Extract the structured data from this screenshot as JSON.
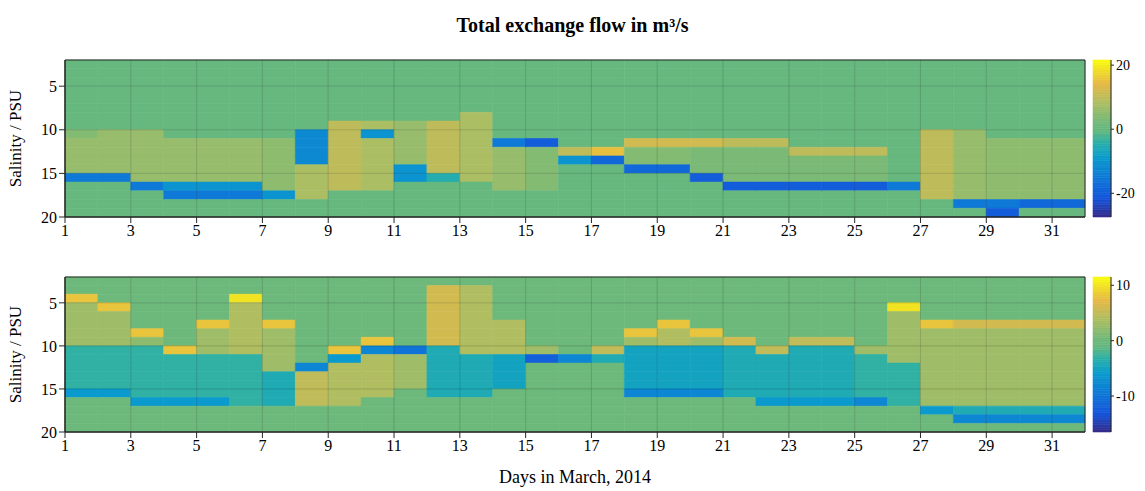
{
  "title": "Total exchange flow in m³/s",
  "chart_data": [
    {
      "type": "heatmap",
      "y_label": "Salinity / PSU",
      "xlim": [
        1,
        32
      ],
      "xticks": [
        1,
        3,
        5,
        7,
        9,
        11,
        13,
        15,
        17,
        19,
        21,
        23,
        25,
        27,
        29,
        31
      ],
      "ylim": [
        2,
        20
      ],
      "yticks": [
        5,
        10,
        15,
        20
      ],
      "grid": true,
      "x_edges": [
        1,
        2,
        3,
        4,
        5,
        6,
        7,
        8,
        9,
        10,
        11,
        12,
        13,
        14,
        15,
        16,
        17,
        18,
        19,
        20,
        21,
        22,
        23,
        24,
        25,
        26,
        27,
        28,
        29,
        30,
        31,
        32
      ],
      "y_edges": [
        2,
        3,
        4,
        5,
        6,
        7,
        8,
        9,
        10,
        11,
        12,
        13,
        14,
        15,
        16,
        17,
        18,
        19,
        20
      ],
      "values": [
        [
          0,
          0,
          0,
          0,
          0,
          0,
          0,
          0,
          4,
          6,
          6,
          6,
          6,
          -15,
          0,
          0,
          0,
          0
        ],
        [
          0,
          0,
          0,
          0,
          0,
          0,
          0,
          0,
          6,
          6,
          6,
          6,
          6,
          -15,
          0,
          0,
          0,
          0
        ],
        [
          0,
          0,
          0,
          0,
          0,
          0,
          0,
          0,
          6,
          6,
          6,
          6,
          6,
          6,
          -15,
          0,
          0,
          0
        ],
        [
          0,
          0,
          0,
          0,
          0,
          0,
          0,
          0,
          0,
          6,
          6,
          6,
          6,
          6,
          -10,
          -15,
          0,
          0
        ],
        [
          0,
          0,
          0,
          0,
          0,
          0,
          0,
          0,
          0,
          6,
          6,
          6,
          6,
          6,
          -10,
          -15,
          0,
          0
        ],
        [
          0,
          0,
          0,
          0,
          0,
          0,
          0,
          0,
          0,
          6,
          6,
          6,
          6,
          6,
          -10,
          -15,
          0,
          0
        ],
        [
          0,
          0,
          0,
          0,
          0,
          0,
          0,
          0,
          0,
          5,
          5,
          5,
          5,
          5,
          5,
          -10,
          0,
          0
        ],
        [
          0,
          0,
          0,
          0,
          0,
          0,
          0,
          0,
          -12,
          -12,
          -12,
          -12,
          8,
          8,
          8,
          8,
          0,
          0
        ],
        [
          0,
          0,
          0,
          0,
          0,
          0,
          0,
          10,
          10,
          10,
          10,
          10,
          10,
          10,
          10,
          0,
          0,
          0
        ],
        [
          0,
          0,
          0,
          0,
          0,
          0,
          0,
          8,
          -10,
          8,
          8,
          8,
          8,
          8,
          8,
          0,
          0,
          0
        ],
        [
          0,
          0,
          0,
          0,
          0,
          0,
          0,
          6,
          6,
          6,
          6,
          6,
          -10,
          -10,
          0,
          0,
          0,
          0
        ],
        [
          0,
          0,
          0,
          0,
          0,
          0,
          0,
          10,
          10,
          10,
          10,
          10,
          10,
          -5,
          0,
          0,
          0,
          0
        ],
        [
          0,
          0,
          0,
          0,
          0,
          0,
          8,
          8,
          8,
          8,
          8,
          8,
          8,
          8,
          0,
          0,
          0,
          0
        ],
        [
          0,
          0,
          0,
          0,
          0,
          0,
          0,
          0,
          0,
          -15,
          6,
          6,
          6,
          6,
          6,
          0,
          0,
          0
        ],
        [
          0,
          0,
          0,
          0,
          0,
          0,
          0,
          0,
          0,
          -20,
          4,
          4,
          4,
          4,
          4,
          0,
          0,
          0
        ],
        [
          0,
          0,
          0,
          0,
          0,
          0,
          0,
          0,
          0,
          0,
          10,
          -10,
          0,
          0,
          0,
          0,
          0,
          0
        ],
        [
          0,
          0,
          0,
          0,
          0,
          0,
          0,
          0,
          0,
          0,
          15,
          -18,
          0,
          0,
          0,
          0,
          0,
          0
        ],
        [
          0,
          0,
          0,
          0,
          0,
          0,
          0,
          0,
          0,
          12,
          4,
          4,
          -18,
          0,
          0,
          0,
          0,
          0
        ],
        [
          0,
          0,
          0,
          0,
          0,
          0,
          0,
          0,
          0,
          12,
          4,
          4,
          -18,
          0,
          0,
          0,
          0,
          0
        ],
        [
          0,
          0,
          0,
          0,
          0,
          0,
          0,
          0,
          0,
          12,
          3,
          3,
          3,
          -20,
          0,
          0,
          0,
          0
        ],
        [
          0,
          0,
          0,
          0,
          0,
          0,
          0,
          0,
          0,
          10,
          3,
          3,
          3,
          3,
          -20,
          0,
          0,
          0
        ],
        [
          0,
          0,
          0,
          0,
          0,
          0,
          0,
          0,
          0,
          10,
          3,
          3,
          3,
          3,
          -20,
          0,
          0,
          0
        ],
        [
          0,
          0,
          0,
          0,
          0,
          0,
          0,
          0,
          0,
          0,
          10,
          3,
          3,
          3,
          -20,
          0,
          0,
          0
        ],
        [
          0,
          0,
          0,
          0,
          0,
          0,
          0,
          0,
          0,
          0,
          10,
          3,
          3,
          3,
          -20,
          0,
          0,
          0
        ],
        [
          0,
          0,
          0,
          0,
          0,
          0,
          0,
          0,
          0,
          0,
          10,
          3,
          3,
          3,
          -20,
          0,
          0,
          0
        ],
        [
          0,
          0,
          0,
          0,
          0,
          0,
          0,
          0,
          0,
          0,
          0,
          0,
          0,
          0,
          -15,
          0,
          0,
          0
        ],
        [
          0,
          0,
          0,
          0,
          0,
          0,
          0,
          0,
          10,
          10,
          10,
          10,
          10,
          10,
          10,
          10,
          0,
          0
        ],
        [
          0,
          0,
          0,
          0,
          0,
          0,
          0,
          0,
          6,
          6,
          6,
          6,
          6,
          6,
          6,
          6,
          -15,
          0
        ],
        [
          0,
          0,
          0,
          0,
          0,
          0,
          0,
          0,
          0,
          5,
          5,
          5,
          5,
          5,
          5,
          5,
          -15,
          -20
        ],
        [
          0,
          0,
          0,
          0,
          0,
          0,
          0,
          0,
          0,
          5,
          5,
          5,
          5,
          5,
          5,
          5,
          -18,
          0
        ],
        [
          0,
          0,
          0,
          0,
          0,
          0,
          0,
          0,
          0,
          5,
          5,
          5,
          5,
          5,
          5,
          5,
          -18,
          0
        ]
      ],
      "colorbar": {
        "range": [
          -27.4,
          21.6
        ],
        "ticks": [
          -20,
          0,
          20
        ]
      }
    },
    {
      "type": "heatmap",
      "y_label": "Salinity / PSU",
      "x_label": "Days in March, 2014",
      "xlim": [
        1,
        32
      ],
      "xticks": [
        1,
        3,
        5,
        7,
        9,
        11,
        13,
        15,
        17,
        19,
        21,
        23,
        25,
        27,
        29,
        31
      ],
      "ylim": [
        2,
        20
      ],
      "yticks": [
        5,
        10,
        15,
        20
      ],
      "grid": true,
      "x_edges": [
        1,
        2,
        3,
        4,
        5,
        6,
        7,
        8,
        9,
        10,
        11,
        12,
        13,
        14,
        15,
        16,
        17,
        18,
        19,
        20,
        21,
        22,
        23,
        24,
        25,
        26,
        27,
        28,
        29,
        30,
        31,
        32
      ],
      "y_edges": [
        2,
        3,
        4,
        5,
        6,
        7,
        8,
        9,
        10,
        11,
        12,
        13,
        14,
        15,
        16,
        17,
        18,
        19,
        20
      ],
      "values": [
        [
          0,
          0,
          8,
          3,
          3,
          3,
          3,
          3,
          -3,
          -3,
          -3,
          -3,
          -3,
          -6,
          0,
          0,
          0,
          0
        ],
        [
          0,
          0,
          0,
          8,
          3,
          3,
          3,
          3,
          -3,
          -3,
          -3,
          -3,
          -3,
          -6,
          0,
          0,
          0,
          0
        ],
        [
          0,
          0,
          0,
          0,
          0,
          0,
          8,
          2,
          -3,
          -3,
          -3,
          -3,
          -3,
          -3,
          -6,
          0,
          0,
          0
        ],
        [
          0,
          0,
          0,
          0,
          0,
          0,
          0,
          0,
          8,
          -3,
          -3,
          -3,
          -3,
          -3,
          -6,
          0,
          0,
          0
        ],
        [
          0,
          0,
          0,
          0,
          0,
          8,
          3,
          3,
          3,
          -3,
          -3,
          -3,
          -3,
          -3,
          -6,
          0,
          0,
          0
        ],
        [
          0,
          0,
          10,
          4,
          4,
          4,
          4,
          4,
          4,
          -3,
          -3,
          -3,
          -3,
          -3,
          -3,
          0,
          0,
          0
        ],
        [
          0,
          0,
          0,
          0,
          0,
          8,
          3,
          3,
          3,
          3,
          3,
          -4,
          -4,
          -4,
          -4,
          0,
          0,
          0
        ],
        [
          0,
          0,
          0,
          0,
          0,
          0,
          0,
          0,
          0,
          0,
          -8,
          5,
          5,
          5,
          5,
          0,
          0,
          0
        ],
        [
          0,
          0,
          0,
          0,
          0,
          0,
          0,
          0,
          8,
          -6,
          4,
          4,
          4,
          4,
          4,
          0,
          0,
          0
        ],
        [
          0,
          0,
          0,
          0,
          0,
          0,
          0,
          8,
          -8,
          4,
          4,
          4,
          4,
          4,
          0,
          0,
          0,
          0
        ],
        [
          0,
          0,
          0,
          0,
          0,
          0,
          0,
          0,
          -10,
          3,
          3,
          3,
          3,
          0,
          0,
          0,
          0,
          0
        ],
        [
          0,
          6,
          6,
          6,
          6,
          6,
          6,
          6,
          -4,
          -4,
          -4,
          -4,
          -4,
          -4,
          0,
          0,
          0,
          0
        ],
        [
          0,
          4,
          4,
          4,
          4,
          4,
          4,
          4,
          4,
          -4,
          -4,
          -4,
          -4,
          -4,
          0,
          0,
          0,
          0
        ],
        [
          0,
          0,
          0,
          0,
          0,
          4,
          4,
          4,
          4,
          -5,
          -5,
          -5,
          -5,
          0,
          0,
          0,
          0,
          0
        ],
        [
          0,
          0,
          0,
          0,
          0,
          0,
          0,
          0,
          3,
          -12,
          0,
          0,
          0,
          0,
          0,
          0,
          0,
          0
        ],
        [
          0,
          0,
          0,
          0,
          0,
          0,
          0,
          0,
          0,
          -8,
          0,
          0,
          0,
          0,
          0,
          0,
          0,
          0
        ],
        [
          0,
          0,
          0,
          0,
          0,
          0,
          0,
          0,
          5,
          -4,
          0,
          0,
          0,
          0,
          0,
          0,
          0,
          0
        ],
        [
          0,
          0,
          0,
          0,
          0,
          0,
          8,
          3,
          -5,
          -5,
          -5,
          -5,
          -5,
          -8,
          0,
          0,
          0,
          0
        ],
        [
          0,
          0,
          0,
          0,
          0,
          8,
          4,
          4,
          -5,
          -5,
          -5,
          -5,
          -5,
          -8,
          0,
          0,
          0,
          0
        ],
        [
          0,
          0,
          0,
          0,
          0,
          0,
          8,
          3,
          -5,
          -5,
          -5,
          -5,
          -5,
          -8,
          0,
          0,
          0,
          0
        ],
        [
          0,
          0,
          0,
          0,
          0,
          0,
          0,
          6,
          -4,
          -4,
          -4,
          -4,
          -4,
          -4,
          0,
          0,
          0,
          0
        ],
        [
          0,
          0,
          0,
          0,
          0,
          0,
          0,
          0,
          5,
          -4,
          -4,
          -4,
          -4,
          -4,
          -6,
          0,
          0,
          0
        ],
        [
          0,
          0,
          0,
          0,
          0,
          0,
          0,
          5,
          -4,
          -4,
          -4,
          -4,
          -4,
          -4,
          -6,
          0,
          0,
          0
        ],
        [
          0,
          0,
          0,
          0,
          0,
          0,
          0,
          5,
          -4,
          -4,
          -4,
          -4,
          -4,
          -4,
          -6,
          0,
          0,
          0
        ],
        [
          0,
          0,
          0,
          0,
          0,
          0,
          0,
          0,
          3,
          -3,
          -3,
          -3,
          -3,
          -3,
          -8,
          0,
          0,
          0
        ],
        [
          0,
          0,
          0,
          10,
          3,
          3,
          3,
          3,
          3,
          3,
          -3,
          -3,
          -3,
          -3,
          -3,
          0,
          0,
          0
        ],
        [
          0,
          0,
          0,
          0,
          0,
          8,
          3,
          3,
          3,
          3,
          3,
          3,
          3,
          3,
          3,
          -6,
          0,
          0
        ],
        [
          0,
          0,
          0,
          0,
          0,
          6,
          3,
          3,
          3,
          3,
          3,
          3,
          3,
          3,
          3,
          -4,
          -8,
          0
        ],
        [
          0,
          0,
          0,
          0,
          0,
          6,
          3,
          3,
          3,
          3,
          3,
          3,
          3,
          3,
          3,
          -4,
          -8,
          0
        ],
        [
          0,
          0,
          0,
          0,
          0,
          6,
          3,
          3,
          3,
          3,
          3,
          3,
          3,
          3,
          3,
          -4,
          -8,
          0
        ],
        [
          0,
          0,
          0,
          0,
          0,
          6,
          3,
          3,
          3,
          3,
          3,
          3,
          3,
          3,
          3,
          -4,
          -8,
          0
        ]
      ],
      "colorbar": {
        "range": [
          -16.5,
          11.5
        ],
        "ticks": [
          -10,
          0,
          10
        ]
      }
    }
  ]
}
